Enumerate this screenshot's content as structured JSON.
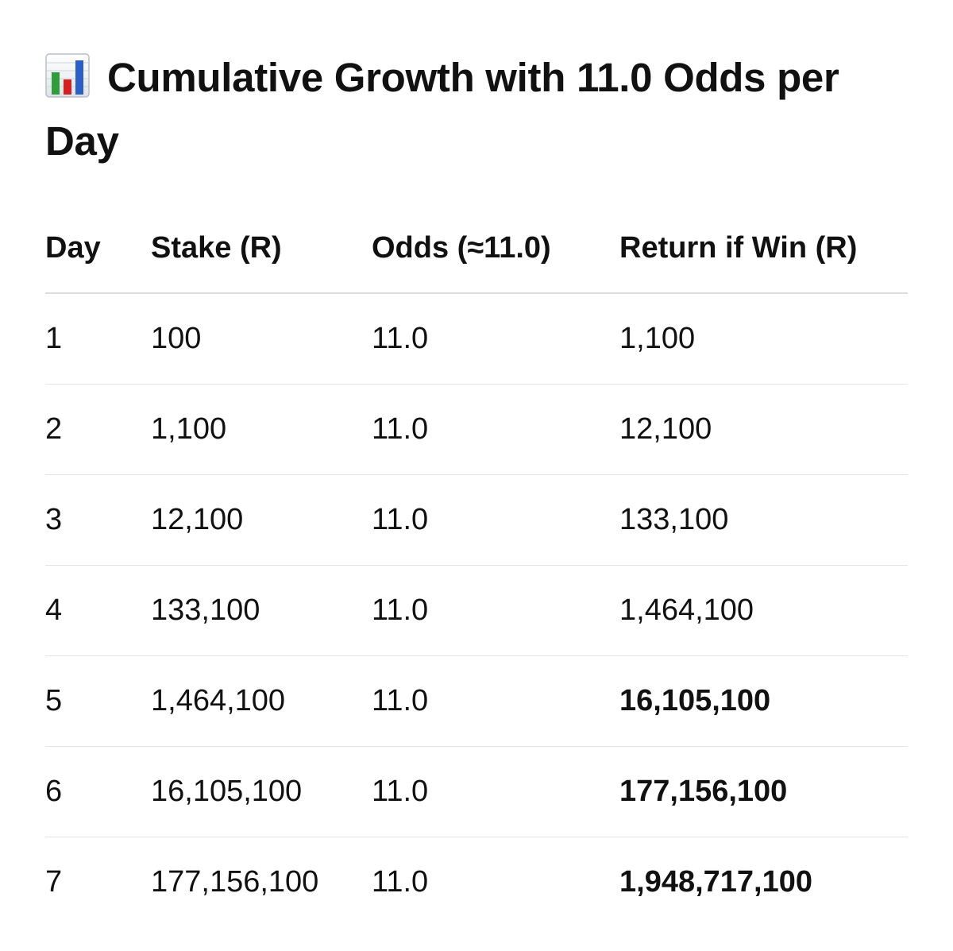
{
  "title": {
    "icon": "bar-chart-emoji-icon",
    "text": "Cumulative Growth with 11.0 Odds per Day"
  },
  "table": {
    "headers": [
      "Day",
      "Stake (R)",
      "Odds (≈11.0)",
      "Return if Win (R)"
    ],
    "rows": [
      {
        "day": "1",
        "stake": "100",
        "odds": "11.0",
        "return": "1,100",
        "bold_return": false
      },
      {
        "day": "2",
        "stake": "1,100",
        "odds": "11.0",
        "return": "12,100",
        "bold_return": false
      },
      {
        "day": "3",
        "stake": "12,100",
        "odds": "11.0",
        "return": "133,100",
        "bold_return": false
      },
      {
        "day": "4",
        "stake": "133,100",
        "odds": "11.0",
        "return": "1,464,100",
        "bold_return": false
      },
      {
        "day": "5",
        "stake": "1,464,100",
        "odds": "11.0",
        "return": "16,105,100",
        "bold_return": true
      },
      {
        "day": "6",
        "stake": "16,105,100",
        "odds": "11.0",
        "return": "177,156,100",
        "bold_return": true
      },
      {
        "day": "7",
        "stake": "177,156,100",
        "odds": "11.0",
        "return": "1,948,717,100",
        "bold_return": true
      }
    ]
  },
  "colors": {
    "text": "#111111",
    "divider": "#e3e3e3",
    "icon_bars": [
      "#2e9e3a",
      "#d42020",
      "#2a5fc9"
    ]
  }
}
